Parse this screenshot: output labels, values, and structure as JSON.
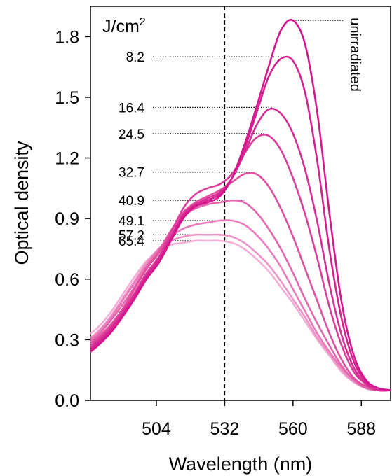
{
  "chart_data": {
    "type": "line",
    "xlabel": "Wavelength (nm)",
    "ylabel": "Optical density",
    "xlim": [
      477,
      600
    ],
    "ylim": [
      0,
      1.95
    ],
    "xticks": [
      "504",
      "532",
      "560",
      "588"
    ],
    "yticks": [
      "0.0",
      "0.3",
      "0.6",
      "0.9",
      "1.2",
      "1.5",
      "1.8"
    ],
    "x": [
      477,
      480,
      485,
      490,
      495,
      500,
      505,
      510,
      515,
      520,
      525,
      530,
      535,
      540,
      545,
      550,
      555,
      560,
      565,
      570,
      575,
      580,
      585,
      590,
      595,
      600
    ],
    "reference_line_x": 532,
    "legend_title": "J/cm",
    "legend_title_sup": "2",
    "series": [
      {
        "name": "unirradiated",
        "color": "#d4178d",
        "peak_x": 560,
        "peak_y": 1.88,
        "values": [
          0.24,
          0.27,
          0.33,
          0.41,
          0.5,
          0.6,
          0.68,
          0.79,
          0.9,
          0.96,
          0.98,
          1.01,
          1.1,
          1.26,
          1.45,
          1.65,
          1.83,
          1.88,
          1.76,
          1.42,
          0.92,
          0.48,
          0.22,
          0.1,
          0.06,
          0.05
        ]
      },
      {
        "name": "8.2",
        "color": "#d6208f",
        "peak_x": 556,
        "peak_y": 1.7,
        "values": [
          0.25,
          0.28,
          0.34,
          0.42,
          0.51,
          0.61,
          0.69,
          0.8,
          0.91,
          0.96,
          0.99,
          1.02,
          1.1,
          1.24,
          1.42,
          1.6,
          1.69,
          1.68,
          1.52,
          1.18,
          0.74,
          0.4,
          0.19,
          0.09,
          0.06,
          0.05
        ]
      },
      {
        "name": "16.4",
        "color": "#d82d94",
        "peak_x": 552,
        "peak_y": 1.45,
        "values": [
          0.26,
          0.29,
          0.35,
          0.43,
          0.52,
          0.62,
          0.7,
          0.81,
          0.92,
          0.97,
          1.0,
          1.03,
          1.1,
          1.22,
          1.36,
          1.44,
          1.42,
          1.32,
          1.14,
          0.88,
          0.57,
          0.32,
          0.16,
          0.08,
          0.05,
          0.05
        ]
      },
      {
        "name": "24.5",
        "color": "#dc3e9c",
        "peak_x": 548,
        "peak_y": 1.32,
        "values": [
          0.27,
          0.3,
          0.36,
          0.44,
          0.53,
          0.63,
          0.71,
          0.83,
          0.95,
          1.02,
          1.05,
          1.07,
          1.12,
          1.22,
          1.3,
          1.31,
          1.24,
          1.1,
          0.92,
          0.7,
          0.46,
          0.27,
          0.14,
          0.08,
          0.05,
          0.05
        ]
      },
      {
        "name": "32.7",
        "color": "#e0509f",
        "peak_x": 544,
        "peak_y": 1.13,
        "values": [
          0.28,
          0.31,
          0.37,
          0.45,
          0.55,
          0.65,
          0.73,
          0.84,
          0.93,
          0.98,
          1.01,
          1.04,
          1.08,
          1.12,
          1.12,
          1.06,
          0.95,
          0.81,
          0.65,
          0.49,
          0.33,
          0.2,
          0.11,
          0.07,
          0.05,
          0.05
        ]
      },
      {
        "name": "40.9",
        "color": "#e466ac",
        "peak_x": 540,
        "peak_y": 0.99,
        "values": [
          0.29,
          0.32,
          0.39,
          0.47,
          0.56,
          0.66,
          0.74,
          0.84,
          0.91,
          0.95,
          0.97,
          0.98,
          0.99,
          0.98,
          0.93,
          0.85,
          0.75,
          0.63,
          0.5,
          0.38,
          0.27,
          0.17,
          0.1,
          0.06,
          0.05,
          0.05
        ]
      },
      {
        "name": "49.1",
        "color": "#e97cb9",
        "peak_x": 536,
        "peak_y": 0.89,
        "values": [
          0.3,
          0.33,
          0.4,
          0.49,
          0.58,
          0.67,
          0.75,
          0.81,
          0.85,
          0.87,
          0.88,
          0.89,
          0.89,
          0.87,
          0.82,
          0.75,
          0.66,
          0.55,
          0.44,
          0.33,
          0.24,
          0.16,
          0.1,
          0.06,
          0.05,
          0.05
        ]
      },
      {
        "name": "57.2",
        "color": "#ee93c6",
        "peak_x": 532,
        "peak_y": 0.82,
        "values": [
          0.31,
          0.34,
          0.41,
          0.5,
          0.59,
          0.68,
          0.75,
          0.79,
          0.81,
          0.82,
          0.82,
          0.82,
          0.81,
          0.78,
          0.73,
          0.67,
          0.59,
          0.5,
          0.41,
          0.31,
          0.23,
          0.15,
          0.09,
          0.06,
          0.05,
          0.05
        ]
      },
      {
        "name": "65.4",
        "color": "#f3aed5",
        "peak_x": 528,
        "peak_y": 0.79,
        "values": [
          0.33,
          0.36,
          0.43,
          0.52,
          0.61,
          0.69,
          0.74,
          0.77,
          0.78,
          0.79,
          0.79,
          0.79,
          0.78,
          0.75,
          0.7,
          0.64,
          0.56,
          0.48,
          0.39,
          0.3,
          0.22,
          0.14,
          0.09,
          0.06,
          0.05,
          0.05
        ]
      }
    ]
  }
}
